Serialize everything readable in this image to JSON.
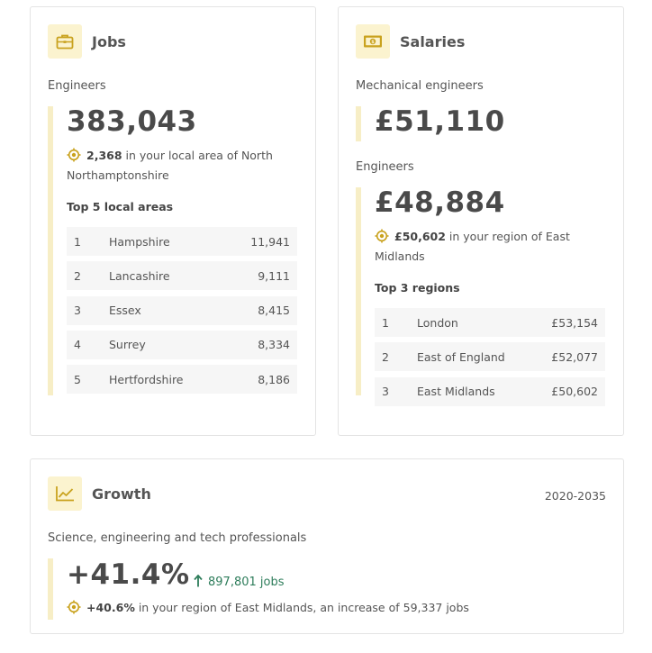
{
  "jobs": {
    "title": "Jobs",
    "icon": "briefcase-icon",
    "occupation": "Engineers",
    "total": "383,043",
    "local_count": "2,368",
    "local_text": " in your local area of North Northamptonshire",
    "top_heading": "Top 5 local areas",
    "rows": [
      {
        "rank": "1",
        "name": "Hampshire",
        "value": "11,941"
      },
      {
        "rank": "2",
        "name": "Lancashire",
        "value": "9,111"
      },
      {
        "rank": "3",
        "name": "Essex",
        "value": "8,415"
      },
      {
        "rank": "4",
        "name": "Surrey",
        "value": "8,334"
      },
      {
        "rank": "5",
        "name": "Hertfordshire",
        "value": "8,186"
      }
    ]
  },
  "salaries": {
    "title": "Salaries",
    "icon": "banknote-icon",
    "occupation_a": "Mechanical engineers",
    "salary_a": "£51,110",
    "occupation_b": "Engineers",
    "salary_b": "£48,884",
    "region_value": "£50,602",
    "region_text": " in your region of East Midlands",
    "top_heading": "Top 3 regions",
    "rows": [
      {
        "rank": "1",
        "name": "London",
        "value": "£53,154"
      },
      {
        "rank": "2",
        "name": "East of England",
        "value": "£52,077"
      },
      {
        "rank": "3",
        "name": "East Midlands",
        "value": "£50,602"
      }
    ]
  },
  "growth": {
    "title": "Growth",
    "icon": "line-chart-icon",
    "period": "2020-2035",
    "occupation": "Science, engineering and tech professionals",
    "percent": "+41.4%",
    "jobs_change": "897,801 jobs",
    "region_percent": "+40.6%",
    "region_text": " in your region of East Midlands, an increase of 59,337 jobs"
  },
  "colors": {
    "accent": "#c9a21e",
    "accent_light": "#fbf3cf",
    "accent_bar": "#f7eec6",
    "growth_green": "#2e7d5b"
  }
}
